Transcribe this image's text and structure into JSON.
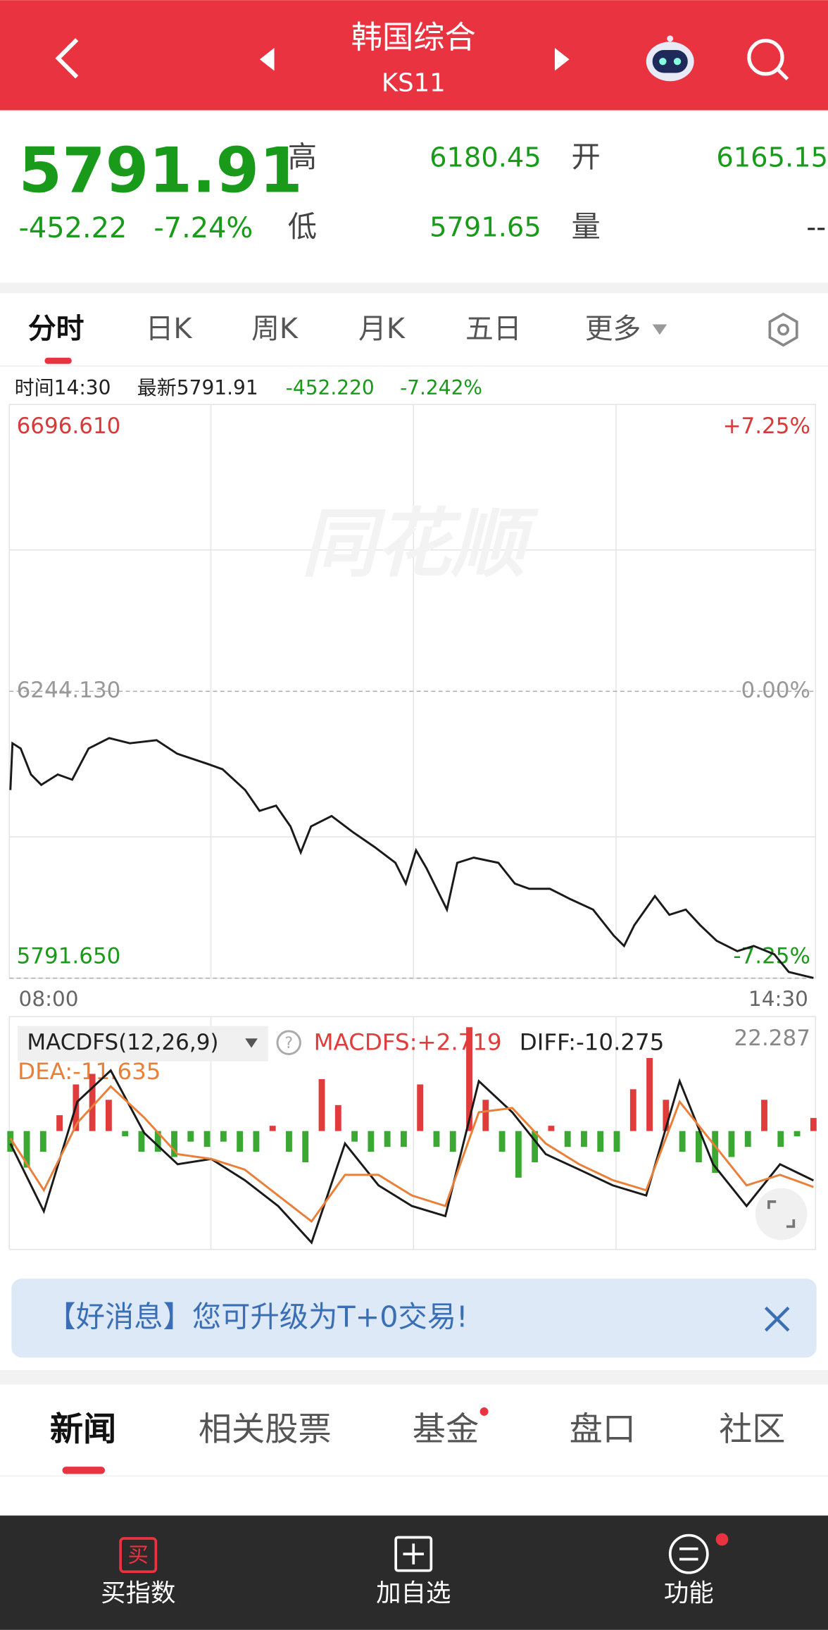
{
  "header": {
    "title": "韩国综合",
    "code": "KS11"
  },
  "quote": {
    "price": "5791.91",
    "change": "-452.22",
    "change_pct": "-7.24%",
    "high_label": "高",
    "high": "6180.45",
    "open_label": "开",
    "open": "6165.15",
    "low_label": "低",
    "low": "5791.65",
    "volume_label": "量",
    "volume": "--"
  },
  "tabs": [
    "分时",
    "日K",
    "周K",
    "月K",
    "五日",
    "更多"
  ],
  "info": {
    "time": "时间14:30",
    "latest": "最新5791.91",
    "change": "-452.220",
    "change_pct": "-7.242%"
  },
  "intraday_chart": {
    "type": "line",
    "watermark": "同花顺",
    "color": "#1a1a1a",
    "x": [
      "08:00",
      "08:01",
      "08:05",
      "08:10",
      "08:15",
      "08:23",
      "08:30",
      "08:38",
      "08:48",
      "08:58",
      "09:11",
      "09:21",
      "09:36",
      "09:43",
      "09:54",
      "10:01",
      "10:09",
      "10:16",
      "10:21",
      "10:26",
      "10:36",
      "10:46",
      "10:57",
      "11:07",
      "11:12",
      "11:17",
      "11:22",
      "11:27",
      "11:32",
      "11:37",
      "11:45",
      "11:57",
      "12:05",
      "12:12",
      "12:22",
      "12:32",
      "12:43",
      "12:53",
      "12:58",
      "13:03",
      "13:13",
      "13:20",
      "13:28",
      "13:35",
      "13:43",
      "13:53",
      "14:01",
      "14:11",
      "14:18",
      "14:30"
    ],
    "values": [
      6088.4,
      6162.1,
      6153.9,
      6113.0,
      6096.6,
      6113.0,
      6104.8,
      6153.9,
      6170.4,
      6162.1,
      6167.1,
      6145.8,
      6129.4,
      6121.2,
      6088.4,
      6055.6,
      6063.8,
      6031.0,
      5990.0,
      6031.0,
      6047.4,
      6022.8,
      5998.2,
      5973.6,
      5940.8,
      5993.3,
      5965.4,
      5932.6,
      5899.8,
      5973.6,
      5981.8,
      5973.6,
      5940.8,
      5932.6,
      5932.6,
      5916.2,
      5899.8,
      5858.8,
      5842.4,
      5875.2,
      5921.1,
      5891.6,
      5899.8,
      5875.2,
      5850.6,
      5834.2,
      5842.4,
      5829.3,
      5801.5,
      5791.91
    ],
    "ylim": [
      5791.65,
      6696.61
    ],
    "yticks": [
      {
        "value": 5791.65,
        "label": "5791.650"
      },
      {
        "value": 6244.13,
        "label": "6244.130"
      },
      {
        "value": 6696.61,
        "label": "6696.610"
      }
    ],
    "pct_labels": [
      "-7.25%",
      "0.00%",
      "+7.25%"
    ],
    "xlim": [
      "08:00",
      "14:30"
    ],
    "xticks": [
      "08:00",
      "14:30"
    ]
  },
  "macd_chart": {
    "type": "bar",
    "indicator": "MACDFS(12,26,9)",
    "macdfs_label": "MACDFS:+2.719",
    "diff_label": "DIFF:-10.275",
    "dea_label": "DEA:-11.635",
    "up_color": "#e03c3c",
    "down_color": "#3aa832",
    "ylim": [
      -24.2,
      22.287
    ],
    "yticks": [
      22.287
    ],
    "values": [
      -4.3,
      -7.6,
      -4.3,
      3.3,
      9.7,
      11.9,
      6.5,
      -1.1,
      -4.3,
      -4.3,
      -5.4,
      -2.2,
      -3.3,
      -2.2,
      -4.3,
      -4.3,
      1.1,
      -4.3,
      -6.5,
      10.8,
      5.4,
      -2.2,
      -4.3,
      -3.3,
      -3.3,
      9.7,
      -3.3,
      -4.3,
      21.6,
      6.5,
      -4.3,
      -9.7,
      -6.5,
      1.1,
      -3.3,
      -3.3,
      -4.3,
      -4.3,
      8.7,
      15.2,
      6.5,
      -4.3,
      -6.5,
      -8.7,
      -5.4,
      -3.3,
      6.5,
      -3.3,
      -1.1,
      2.719
    ],
    "series": [
      {
        "color": "#1a1a1a",
        "values": [
          -2.6,
          -16.7,
          6.1,
          12.6,
          -0.4,
          -6.9,
          -5.8,
          -10.2,
          -15.6,
          -23.2,
          -2.6,
          -11.3,
          -15.6,
          -17.7,
          10.4,
          3.9,
          -4.8,
          -8.0,
          -11.3,
          -13.4,
          10.4,
          -6.9,
          -15.6,
          -6.9,
          -10.275
        ]
      },
      {
        "color": "#e8803a",
        "values": [
          -1.5,
          -12.3,
          1.7,
          9.3,
          2.8,
          -4.8,
          -5.8,
          -8.0,
          -13.4,
          -18.8,
          -9.1,
          -9.1,
          -13.4,
          -15.6,
          3.9,
          4.8,
          -2.6,
          -6.9,
          -10.2,
          -12.3,
          6.1,
          -2.6,
          -11.3,
          -9.1,
          -11.635
        ]
      }
    ]
  },
  "banner": {
    "text": "【好消息】您可升级为T+0交易!"
  },
  "news_tabs": [
    "新闻",
    "相关股票",
    "基金",
    "盘口",
    "社区"
  ],
  "bottom_bar": {
    "buy_icon": "买",
    "items": [
      "买指数",
      "加自选",
      "功能"
    ]
  }
}
